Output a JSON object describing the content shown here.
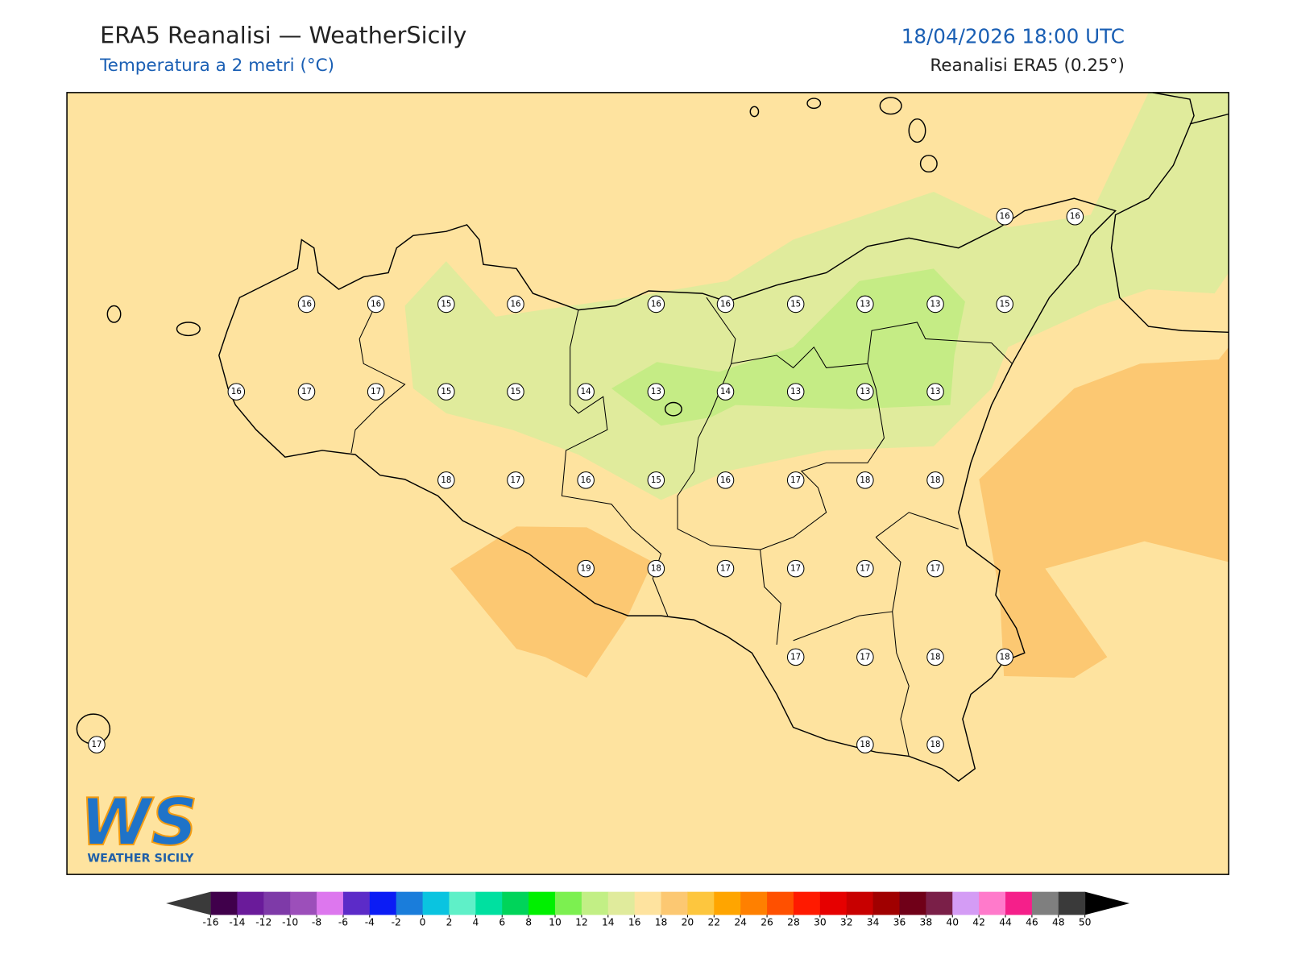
{
  "header": {
    "title": "ERA5 Reanalisi — WeatherSicily",
    "subtitle": "Temperatura a 2 metri (°C)",
    "datetime": "18/04/2026 18:00 UTC",
    "source": "Reanalisi ERA5 (0.25°)"
  },
  "stations": {
    "values": [
      16,
      16,
      16,
      16,
      15,
      16,
      16,
      16,
      15,
      13,
      13,
      15,
      16,
      17,
      17,
      15,
      15,
      14,
      13,
      14,
      13,
      13,
      13,
      18,
      17,
      16,
      15,
      16,
      17,
      18,
      18,
      19,
      18,
      17,
      17,
      17,
      17,
      17,
      17,
      18,
      18,
      17,
      18,
      18
    ]
  },
  "colorbar": {
    "ticks": [
      -16,
      -14,
      -12,
      -10,
      -8,
      -6,
      -4,
      -2,
      0,
      2,
      4,
      6,
      8,
      10,
      12,
      14,
      16,
      18,
      20,
      22,
      24,
      26,
      28,
      30,
      32,
      34,
      36,
      38,
      40,
      42,
      44,
      46,
      48,
      50
    ],
    "colors": [
      "#40004b",
      "#6a1b9a",
      "#7e3aa8",
      "#9c4fba",
      "#dd77ee",
      "#5c2bc8",
      "#0b1cf5",
      "#1a7ddb",
      "#0ac4e0",
      "#5ff0c8",
      "#00e0a0",
      "#00d45a",
      "#00f000",
      "#7cf050",
      "#c2ef85",
      "#e0eb9c",
      "#fee39f",
      "#fcc872",
      "#fdc63e",
      "#ffa500",
      "#ff8000",
      "#ff5000",
      "#ff1a00",
      "#e60000",
      "#c80000",
      "#a00000",
      "#700018",
      "#7a1f48",
      "#d49cf5",
      "#ff7acb",
      "#f51f8a",
      "#7f7f7f",
      "#3a3a3a"
    ],
    "under_color": "#3a3a3a",
    "over_color": "#000000"
  },
  "logo": {
    "mark": "WS",
    "text": "WEATHER SICILY"
  }
}
